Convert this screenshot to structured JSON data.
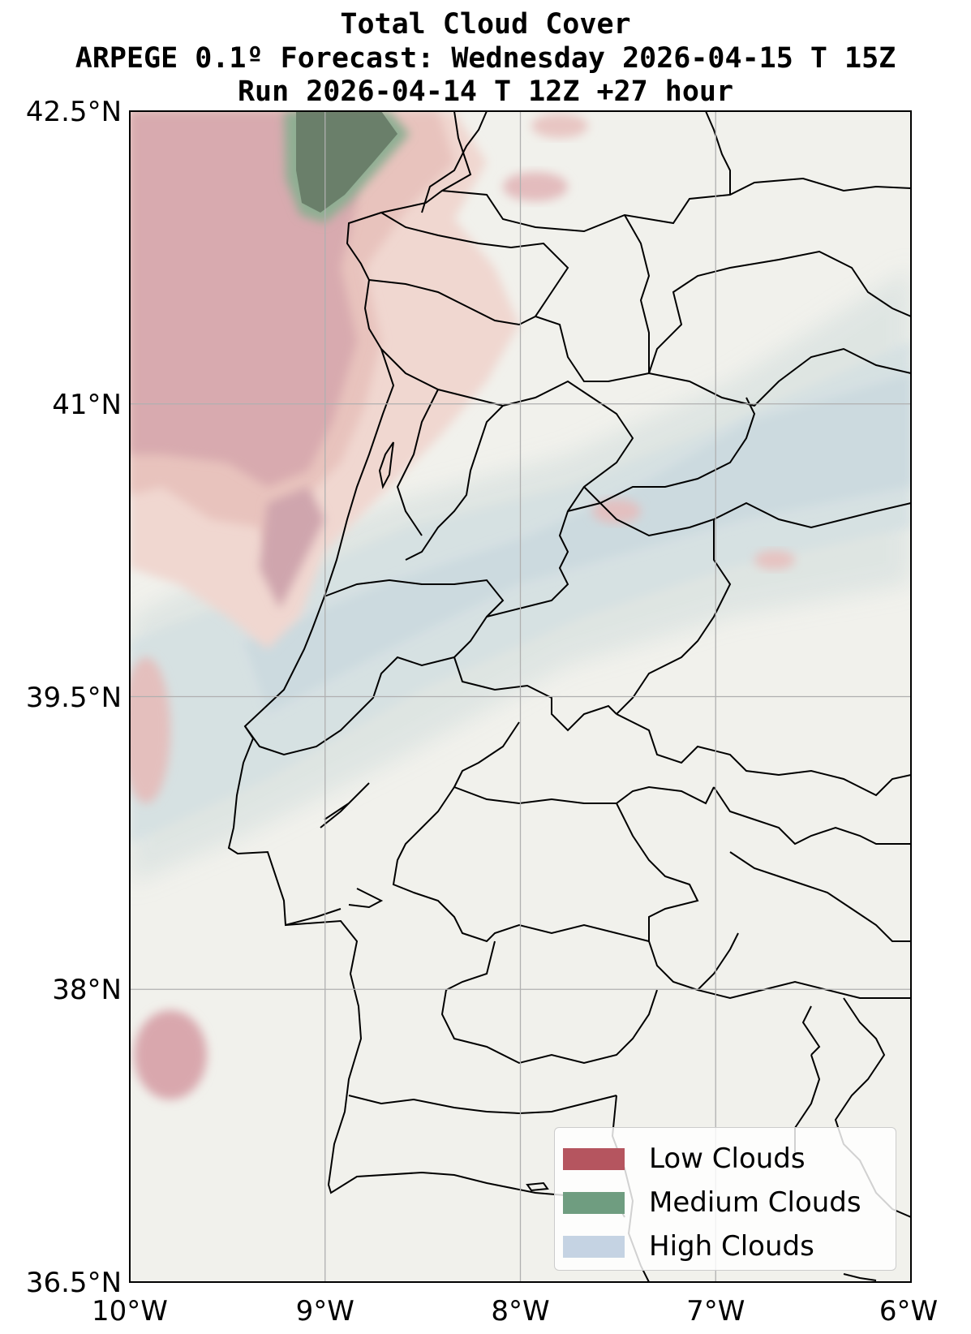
{
  "titles": {
    "line1": "Total Cloud Cover",
    "line2": "ARPEGE 0.1º Forecast: Wednesday 2026-04-15 T 15Z",
    "line3": "Run 2026-04-14 T 12Z +27 hour"
  },
  "axes": {
    "lat_ticks": [
      "42.5°N",
      "41°N",
      "39.5°N",
      "38°N",
      "36.5°N"
    ],
    "lon_ticks": [
      "10°W",
      "9°W",
      "8°W",
      "7°W",
      "6°W"
    ],
    "lat_range": [
      36.5,
      42.5
    ],
    "lon_range": [
      -10,
      -6
    ],
    "grid": true
  },
  "legend": {
    "items": [
      {
        "label": "Low Clouds",
        "color": "#b5555f"
      },
      {
        "label": "Medium Clouds",
        "color": "#6f9d80"
      },
      {
        "label": "High Clouds",
        "color": "#c5d3e3"
      }
    ]
  },
  "colors": {
    "background": "#f1f1ec",
    "low": "#b5555f",
    "medium": "#4e7d58",
    "high": "#c5d3e3"
  }
}
